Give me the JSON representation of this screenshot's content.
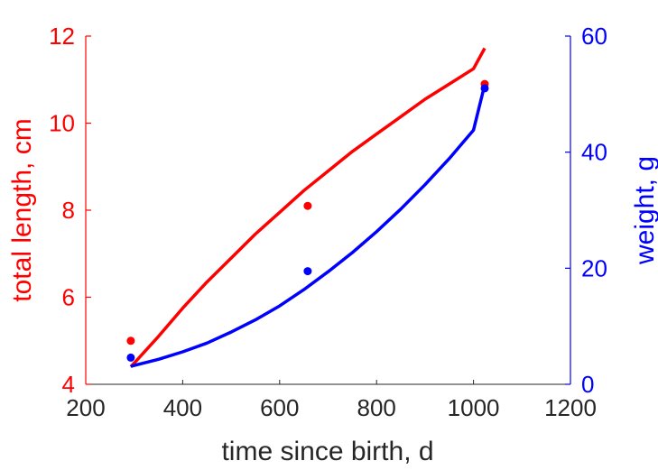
{
  "chart_data": {
    "type": "line",
    "title": "",
    "xlabel": "time since birth, d",
    "xlim": [
      200,
      1200
    ],
    "xticks": [
      "200",
      "400",
      "600",
      "800",
      "1000",
      "1200"
    ],
    "y_left": {
      "label": "total length, cm",
      "lim": [
        4,
        12
      ],
      "ticks": [
        "4",
        "6",
        "8",
        "10",
        "12"
      ],
      "color": "#ff0000"
    },
    "y_right": {
      "label": "weight, g",
      "lim": [
        0,
        60
      ],
      "ticks": [
        "0",
        "20",
        "40",
        "60"
      ],
      "color": "#0000ff"
    },
    "series": [
      {
        "axis": "left",
        "color": "#ff0000",
        "points": [
          [
            293,
            5.0
          ],
          [
            658,
            8.1
          ],
          [
            1023,
            10.9
          ]
        ],
        "curve": [
          [
            293,
            4.4
          ],
          [
            350,
            5.1
          ],
          [
            400,
            5.75
          ],
          [
            450,
            6.35
          ],
          [
            500,
            6.9
          ],
          [
            550,
            7.45
          ],
          [
            600,
            7.95
          ],
          [
            650,
            8.45
          ],
          [
            700,
            8.9
          ],
          [
            750,
            9.35
          ],
          [
            800,
            9.75
          ],
          [
            850,
            10.15
          ],
          [
            900,
            10.55
          ],
          [
            950,
            10.9
          ],
          [
            1000,
            11.25
          ],
          [
            1023,
            11.72
          ]
        ]
      },
      {
        "axis": "right",
        "color": "#0000ff",
        "points": [
          [
            293,
            4.6
          ],
          [
            658,
            19.5
          ],
          [
            1023,
            51.0
          ]
        ],
        "curve": [
          [
            293,
            3.1
          ],
          [
            350,
            4.3
          ],
          [
            400,
            5.6
          ],
          [
            450,
            7.1
          ],
          [
            500,
            9.0
          ],
          [
            550,
            11.1
          ],
          [
            600,
            13.5
          ],
          [
            650,
            16.3
          ],
          [
            700,
            19.4
          ],
          [
            750,
            22.7
          ],
          [
            800,
            26.3
          ],
          [
            850,
            30.2
          ],
          [
            900,
            34.4
          ],
          [
            950,
            38.9
          ],
          [
            1000,
            43.8
          ],
          [
            1023,
            51.6
          ]
        ]
      }
    ]
  }
}
